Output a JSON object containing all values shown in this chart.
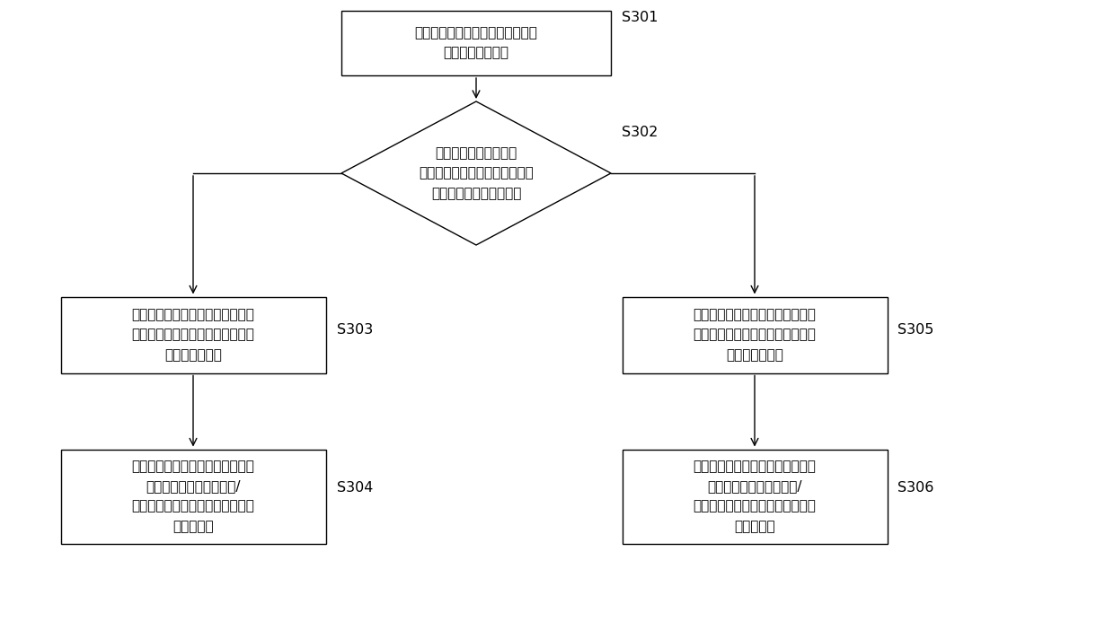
{
  "bg_color": "#ffffff",
  "line_color": "#000000",
  "box_fill": "#ffffff",
  "text_color": "#000000",
  "s301_label": "S301",
  "s302_label": "S302",
  "s303_label": "S303",
  "s304_label": "S304",
  "s305_label": "S305",
  "s306_label": "S306",
  "box1_text": "获取第一电机的轴角加速度和第二\n电机的轴角加速度",
  "diamond_text": "对所述第一电机的轴角\n加速度和所述第二电机的轴角加\n速度之间的大小进行判断",
  "box3_text": "当所述第一电机的轴角加速度大于\n所述第二电机的轴角加速度时，计\n算出扭矩交换值",
  "box4_text": "根据所述扭矩交换值，通过增加所\n述第一电机的输出扭矩和/\n或减少所述第二电机的输出扭矩进\n行扭矩补偿",
  "box5_text": "当所述第一电机的轴角加速度小于\n所述第二电机的轴角加速度时，计\n算出扭矩交换值",
  "box6_text": "根据所述扭矩交换值，通过减少所\n述第一电机的输出扭矩和/\n或增加所述第二电机的输出扭矩进\n行扭矩补偿"
}
